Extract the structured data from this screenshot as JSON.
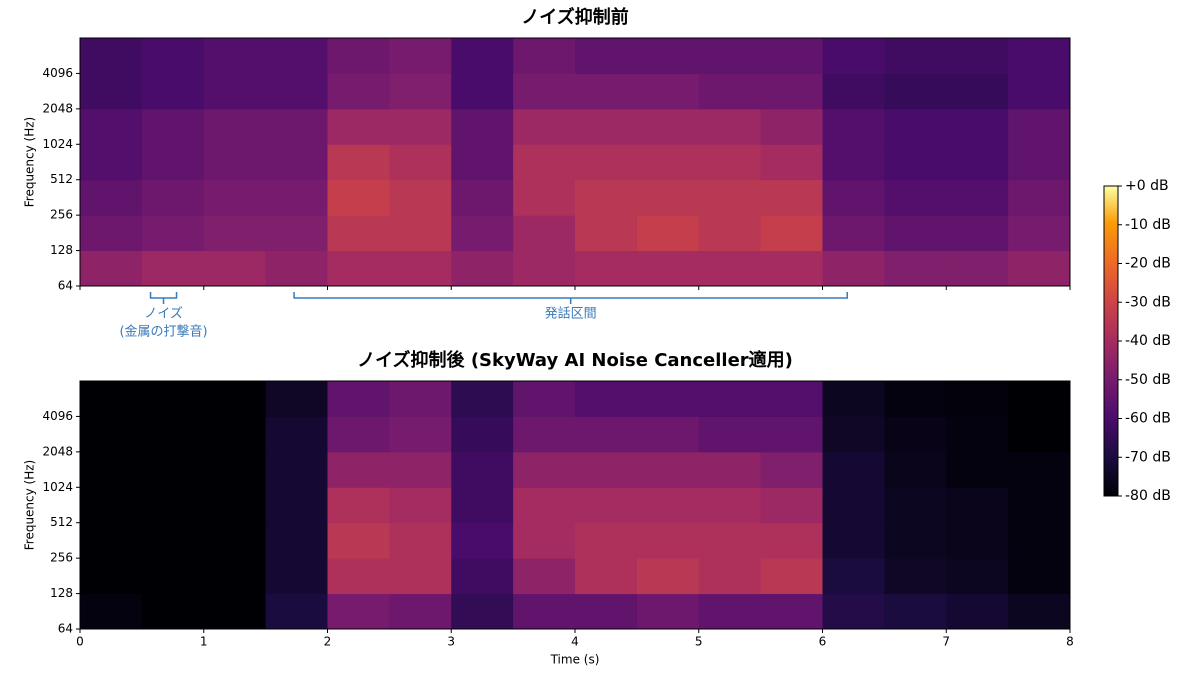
{
  "chart_data": [
    {
      "type": "heatmap",
      "title": "ノイズ抑制前",
      "ylabel": "Frequency (Hz)",
      "yscale": "log2",
      "colormap": "inferno",
      "xbins": [
        0,
        0.5,
        1,
        1.5,
        2,
        2.5,
        3,
        3.5,
        4,
        4.5,
        5,
        5.5,
        6,
        6.5,
        7,
        7.5,
        8
      ],
      "ybins": [
        64,
        128,
        256,
        512,
        1024,
        2048,
        4096,
        8192
      ],
      "z": [
        [
          -45,
          -42,
          -42,
          -45,
          -40,
          -40,
          -45,
          -42,
          -40,
          -40,
          -40,
          -40,
          -45,
          -48,
          -48,
          -45
        ],
        [
          -52,
          -50,
          -48,
          -48,
          -35,
          -35,
          -50,
          -42,
          -35,
          -32,
          -35,
          -32,
          -52,
          -55,
          -55,
          -50
        ],
        [
          -55,
          -52,
          -50,
          -50,
          -32,
          -35,
          -52,
          -38,
          -35,
          -35,
          -35,
          -35,
          -55,
          -58,
          -58,
          -52
        ],
        [
          -58,
          -55,
          -52,
          -52,
          -35,
          -38,
          -55,
          -38,
          -38,
          -38,
          -38,
          -40,
          -58,
          -60,
          -60,
          -55
        ],
        [
          -58,
          -55,
          -52,
          -52,
          -42,
          -42,
          -55,
          -42,
          -42,
          -42,
          -42,
          -45,
          -58,
          -60,
          -60,
          -55
        ],
        [
          -62,
          -60,
          -58,
          -58,
          -50,
          -48,
          -60,
          -50,
          -50,
          -50,
          -52,
          -52,
          -62,
          -64,
          -64,
          -60
        ],
        [
          -62,
          -60,
          -58,
          -58,
          -52,
          -50,
          -60,
          -52,
          -55,
          -55,
          -55,
          -55,
          -60,
          -62,
          -62,
          -60
        ]
      ],
      "xlim": [
        0,
        8
      ],
      "xticks": [
        0,
        1,
        2,
        3,
        4,
        5,
        6,
        7,
        8
      ],
      "xticklabels": false,
      "ylim": [
        64,
        8192
      ],
      "yticks": [
        64,
        128,
        256,
        512,
        1024,
        2048,
        4096
      ],
      "annotations": [
        {
          "text": [
            "ノイズ",
            "(金属の打撃音)"
          ],
          "x": [
            0.57,
            0.78
          ]
        },
        {
          "text": [
            "発話区間"
          ],
          "x": [
            1.73,
            6.2
          ]
        }
      ]
    },
    {
      "type": "heatmap",
      "title": "ノイズ抑制後 (SkyWay AI Noise Canceller適用)",
      "ylabel": "Frequency (Hz)",
      "xlabel": "Time (s)",
      "yscale": "log2",
      "colormap": "inferno",
      "xbins": [
        0,
        0.5,
        1,
        1.5,
        2,
        2.5,
        3,
        3.5,
        4,
        4.5,
        5,
        5.5,
        6,
        6.5,
        7,
        7.5,
        8
      ],
      "ybins": [
        64,
        128,
        256,
        512,
        1024,
        2048,
        4096,
        8192
      ],
      "z": [
        [
          -78,
          -80,
          -80,
          -70,
          -50,
          -52,
          -65,
          -55,
          -55,
          -52,
          -55,
          -55,
          -68,
          -70,
          -72,
          -75
        ],
        [
          -80,
          -80,
          -80,
          -72,
          -38,
          -38,
          -62,
          -45,
          -38,
          -35,
          -38,
          -35,
          -70,
          -74,
          -75,
          -78
        ],
        [
          -80,
          -80,
          -80,
          -72,
          -35,
          -38,
          -60,
          -40,
          -38,
          -38,
          -38,
          -38,
          -72,
          -75,
          -76,
          -78
        ],
        [
          -80,
          -80,
          -80,
          -72,
          -38,
          -40,
          -62,
          -40,
          -40,
          -40,
          -40,
          -42,
          -72,
          -75,
          -76,
          -78
        ],
        [
          -80,
          -80,
          -80,
          -72,
          -45,
          -45,
          -62,
          -45,
          -45,
          -45,
          -45,
          -48,
          -72,
          -76,
          -78,
          -78
        ],
        [
          -80,
          -80,
          -80,
          -72,
          -52,
          -50,
          -64,
          -52,
          -52,
          -52,
          -55,
          -55,
          -74,
          -77,
          -78,
          -80
        ],
        [
          -80,
          -80,
          -80,
          -74,
          -55,
          -52,
          -66,
          -55,
          -58,
          -58,
          -58,
          -58,
          -75,
          -78,
          -79,
          -80
        ]
      ],
      "xlim": [
        0,
        8
      ],
      "xticks": [
        0,
        1,
        2,
        3,
        4,
        5,
        6,
        7,
        8
      ],
      "xticklabels": true,
      "ylim": [
        64,
        8192
      ],
      "yticks": [
        64,
        128,
        256,
        512,
        1024,
        2048,
        4096
      ]
    },
    {
      "type": "colorbar",
      "colormap": "inferno",
      "clim": [
        -80,
        0
      ],
      "ticks": [
        {
          "value": 0,
          "label": "+0 dB"
        },
        {
          "value": -10,
          "label": "-10 dB"
        },
        {
          "value": -20,
          "label": "-20 dB"
        },
        {
          "value": -30,
          "label": "-30 dB"
        },
        {
          "value": -40,
          "label": "-40 dB"
        },
        {
          "value": -50,
          "label": "-50 dB"
        },
        {
          "value": -60,
          "label": "-60 dB"
        },
        {
          "value": -70,
          "label": "-70 dB"
        },
        {
          "value": -80,
          "label": "-80 dB"
        }
      ]
    }
  ]
}
